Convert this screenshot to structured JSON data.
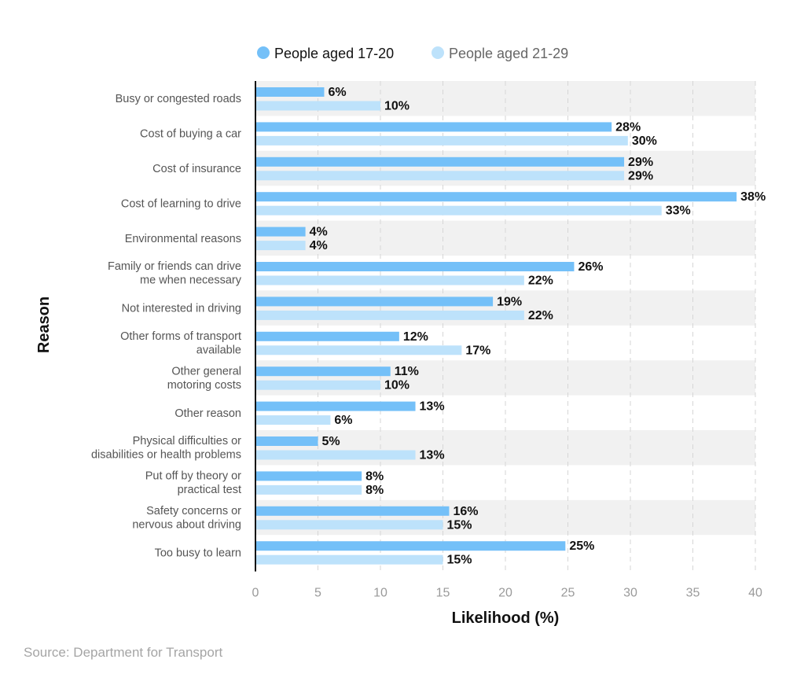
{
  "chart_data": {
    "type": "bar",
    "orientation": "horizontal",
    "categories": [
      [
        "Busy or congested roads"
      ],
      [
        "Cost of buying a car"
      ],
      [
        "Cost of insurance"
      ],
      [
        "Cost of learning to drive"
      ],
      [
        "Environmental reasons"
      ],
      [
        "Family or friends can drive",
        "me when necessary"
      ],
      [
        "Not interested in driving"
      ],
      [
        "Other forms of transport",
        "available"
      ],
      [
        "Other general",
        "motoring costs"
      ],
      [
        "Other reason"
      ],
      [
        "Physical difficulties or",
        "disabilities or health problems"
      ],
      [
        "Put off by theory or",
        "practical test"
      ],
      [
        "Safety concerns or",
        "nervous about driving"
      ],
      [
        "Too busy to learn"
      ]
    ],
    "series": [
      {
        "name": "People aged 17-20",
        "color": "#74c0f8",
        "values": [
          5.5,
          28.5,
          29.5,
          38.5,
          4,
          25.5,
          19,
          11.5,
          10.8,
          12.8,
          5,
          8.5,
          15.5,
          24.8
        ],
        "labels": [
          "6%",
          "28%",
          "29%",
          "38%",
          "4%",
          "26%",
          "19%",
          "12%",
          "11%",
          "13%",
          "5%",
          "8%",
          "16%",
          "25%"
        ]
      },
      {
        "name": "People aged 21-29",
        "color": "#bde2fb",
        "values": [
          10,
          29.8,
          29.5,
          32.5,
          4,
          21.5,
          21.5,
          16.5,
          10,
          6,
          12.8,
          8.5,
          15,
          15
        ],
        "labels": [
          "10%",
          "30%",
          "29%",
          "33%",
          "4%",
          "22%",
          "22%",
          "17%",
          "10%",
          "6%",
          "13%",
          "8%",
          "15%",
          "15%"
        ]
      }
    ],
    "xlim": [
      0,
      40
    ],
    "xticks": [
      0,
      5,
      10,
      15,
      20,
      25,
      30,
      35,
      40
    ],
    "xlabel": "Likelihood (%)",
    "ylabel": "Reason",
    "legend_position": "top-center",
    "grid": "vertical-dashed",
    "band_color": "#f1f1f1"
  },
  "source_text": "Source: Department for Transport"
}
